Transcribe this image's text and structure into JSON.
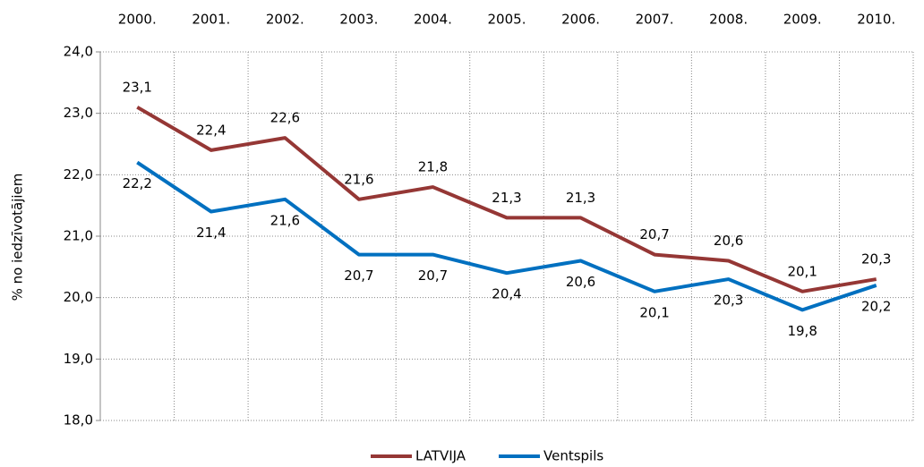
{
  "chart_data": {
    "type": "line",
    "y_label": "% no iedzīvotājiem",
    "categories": [
      "2000.",
      "2001.",
      "2002.",
      "2003.",
      "2004.",
      "2005.",
      "2006.",
      "2007.",
      "2008.",
      "2009.",
      "2010."
    ],
    "series": [
      {
        "name": "LATVIJA",
        "color": "#953735",
        "values": [
          23.1,
          22.4,
          22.6,
          21.6,
          21.8,
          21.3,
          21.3,
          20.7,
          20.6,
          20.1,
          20.3
        ],
        "value_labels": [
          "23,1",
          "22,4",
          "22,6",
          "21,6",
          "21,8",
          "21,3",
          "21,3",
          "20,7",
          "20,6",
          "20,1",
          "20,3"
        ]
      },
      {
        "name": "Ventspils",
        "color": "#0070c0",
        "values": [
          22.2,
          21.4,
          21.6,
          20.7,
          20.7,
          20.4,
          20.6,
          20.1,
          20.3,
          19.8,
          20.2
        ],
        "value_labels": [
          "22,2",
          "21,4",
          "21,6",
          "20,7",
          "20,7",
          "20,4",
          "20,6",
          "20,1",
          "20,3",
          "19,8",
          "20,2"
        ]
      }
    ],
    "ylim": [
      18,
      24
    ],
    "yticks": [
      {
        "value": 18,
        "label": "18,0"
      },
      {
        "value": 19,
        "label": "19,0"
      },
      {
        "value": 20,
        "label": "20,0"
      },
      {
        "value": 21,
        "label": "21,0"
      },
      {
        "value": 22,
        "label": "22,0"
      },
      {
        "value": 23,
        "label": "23,0"
      },
      {
        "value": 24,
        "label": "24,0"
      }
    ],
    "grid": true,
    "legend_position": "bottom"
  }
}
